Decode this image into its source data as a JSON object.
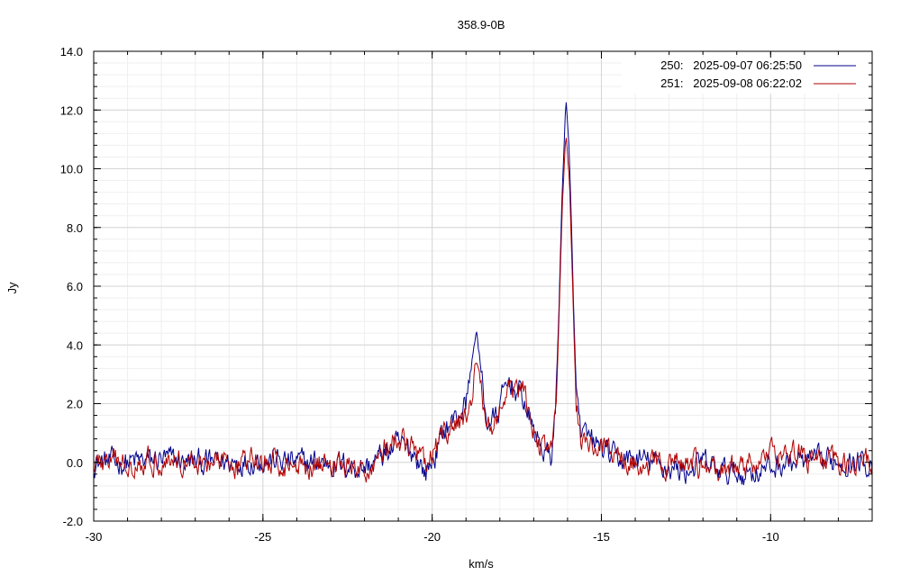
{
  "chart_data": {
    "type": "line",
    "title": "358.9-0B",
    "xlabel": "km/s",
    "ylabel": "Jy",
    "xlim": [
      -30,
      -7
    ],
    "ylim": [
      -2,
      14
    ],
    "xticks": [
      "-30",
      "-25",
      "-20",
      "-15",
      "-10"
    ],
    "yticks": [
      "-2.0",
      "0.0",
      "2.0",
      "4.0",
      "6.0",
      "8.0",
      "10.0",
      "12.0",
      "14.0"
    ],
    "grid": true,
    "legend_position": "top-right",
    "noise_level": 0.45,
    "series": [
      {
        "name": "250:   2025-09-07 06:25:50",
        "color": "#00008b",
        "points": [
          [
            -30,
            0.0
          ],
          [
            -29,
            0.0
          ],
          [
            -28,
            0.1
          ],
          [
            -27,
            0.0
          ],
          [
            -26,
            0.0
          ],
          [
            -25,
            0.1
          ],
          [
            -24,
            0.0
          ],
          [
            -23,
            0.0
          ],
          [
            -22,
            -0.2
          ],
          [
            -21.5,
            0.2
          ],
          [
            -21,
            0.6
          ],
          [
            -20.5,
            0.3
          ],
          [
            -20.2,
            -0.4
          ],
          [
            -19.9,
            0.3
          ],
          [
            -19.6,
            1.2
          ],
          [
            -19.3,
            1.5
          ],
          [
            -19.0,
            2.0
          ],
          [
            -18.8,
            3.6
          ],
          [
            -18.7,
            4.6
          ],
          [
            -18.55,
            3.0
          ],
          [
            -18.4,
            1.4
          ],
          [
            -18.1,
            1.5
          ],
          [
            -17.9,
            2.3
          ],
          [
            -17.7,
            2.8
          ],
          [
            -17.5,
            2.4
          ],
          [
            -17.3,
            2.2
          ],
          [
            -17.15,
            1.5
          ],
          [
            -16.9,
            0.8
          ],
          [
            -16.7,
            0.4
          ],
          [
            -16.5,
            0.1
          ],
          [
            -16.35,
            1.8
          ],
          [
            -16.25,
            5.5
          ],
          [
            -16.15,
            9.5
          ],
          [
            -16.05,
            12.4
          ],
          [
            -15.95,
            10.5
          ],
          [
            -15.85,
            6.5
          ],
          [
            -15.75,
            2.5
          ],
          [
            -15.6,
            0.9
          ],
          [
            -15.3,
            0.7
          ],
          [
            -15.0,
            0.5
          ],
          [
            -14.6,
            0.1
          ],
          [
            -14,
            0.1
          ],
          [
            -13.5,
            0.0
          ],
          [
            -13,
            -0.2
          ],
          [
            -12.5,
            -0.3
          ],
          [
            -12,
            0.0
          ],
          [
            -11.5,
            -0.3
          ],
          [
            -11,
            -0.4
          ],
          [
            -10.5,
            -0.3
          ],
          [
            -10,
            -0.2
          ],
          [
            -9.5,
            0.0
          ],
          [
            -9,
            0.0
          ],
          [
            -8.5,
            0.0
          ],
          [
            -8,
            0.1
          ],
          [
            -7.5,
            0.0
          ],
          [
            -7,
            0.0
          ]
        ]
      },
      {
        "name": "251:   2025-09-08 06:22:02",
        "color": "#b00000",
        "points": [
          [
            -30,
            0.0
          ],
          [
            -29,
            0.0
          ],
          [
            -28,
            0.1
          ],
          [
            -27,
            0.0
          ],
          [
            -26,
            0.0
          ],
          [
            -25,
            0.0
          ],
          [
            -24,
            -0.1
          ],
          [
            -23,
            0.0
          ],
          [
            -22,
            -0.4
          ],
          [
            -21.5,
            0.4
          ],
          [
            -21,
            0.7
          ],
          [
            -20.5,
            0.4
          ],
          [
            -20.2,
            -0.2
          ],
          [
            -19.9,
            0.4
          ],
          [
            -19.6,
            1.0
          ],
          [
            -19.3,
            1.2
          ],
          [
            -19.0,
            1.6
          ],
          [
            -18.8,
            2.4
          ],
          [
            -18.7,
            3.4
          ],
          [
            -18.55,
            2.4
          ],
          [
            -18.4,
            1.3
          ],
          [
            -18.1,
            1.4
          ],
          [
            -17.9,
            2.0
          ],
          [
            -17.7,
            2.4
          ],
          [
            -17.5,
            2.5
          ],
          [
            -17.3,
            2.4
          ],
          [
            -17.15,
            1.6
          ],
          [
            -16.9,
            0.7
          ],
          [
            -16.7,
            0.5
          ],
          [
            -16.5,
            0.3
          ],
          [
            -16.35,
            1.5
          ],
          [
            -16.25,
            5.0
          ],
          [
            -16.15,
            8.8
          ],
          [
            -16.05,
            11.1
          ],
          [
            -15.95,
            9.8
          ],
          [
            -15.85,
            6.0
          ],
          [
            -15.75,
            2.2
          ],
          [
            -15.6,
            0.8
          ],
          [
            -15.3,
            0.6
          ],
          [
            -15.0,
            0.4
          ],
          [
            -14.6,
            0.2
          ],
          [
            -14,
            0.0
          ],
          [
            -13.5,
            -0.1
          ],
          [
            -13,
            -0.1
          ],
          [
            -12.5,
            -0.1
          ],
          [
            -12,
            -0.1
          ],
          [
            -11.5,
            -0.3
          ],
          [
            -11,
            -0.2
          ],
          [
            -10.5,
            0.0
          ],
          [
            -10,
            0.2
          ],
          [
            -9.5,
            0.5
          ],
          [
            -9,
            0.1
          ],
          [
            -8.5,
            0.0
          ],
          [
            -8,
            0.0
          ],
          [
            -7.5,
            0.1
          ],
          [
            -7,
            0.0
          ]
        ]
      }
    ]
  }
}
